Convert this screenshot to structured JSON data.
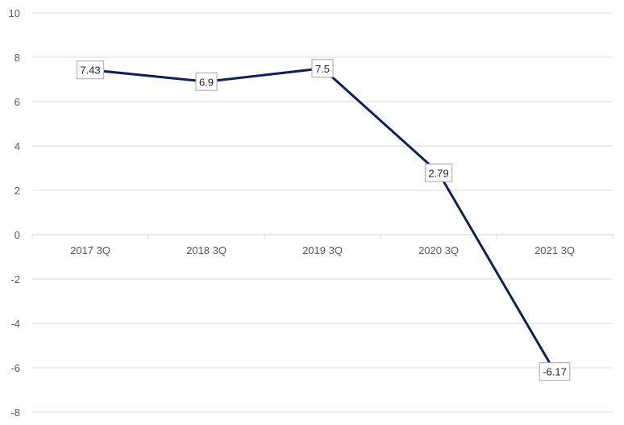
{
  "chart_data": {
    "type": "line",
    "categories": [
      "2017 3Q",
      "2018 3Q",
      "2019 3Q",
      "2020 3Q",
      "2021 3Q"
    ],
    "series": [
      {
        "values": [
          7.43,
          6.9,
          7.5,
          2.79,
          -6.17
        ],
        "color": "#0d2259"
      }
    ],
    "data_labels": [
      "7.43",
      "6.9",
      "7.5",
      "2.79",
      "-6.17"
    ],
    "y_ticks": [
      "10",
      "8",
      "6",
      "4",
      "2",
      "0",
      "-2",
      "-4",
      "-6",
      "-8"
    ],
    "ylim": [
      -8,
      10
    ],
    "grid": true,
    "legend": "none"
  }
}
